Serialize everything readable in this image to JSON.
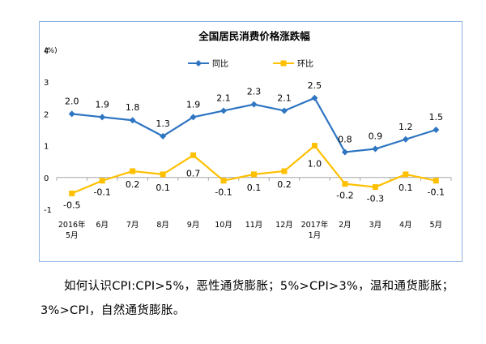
{
  "chart_data": {
    "type": "line",
    "title": "全国居民消费价格涨跌幅",
    "ylabel": "(%)",
    "ylim": [
      -1,
      4
    ],
    "yticks": [
      "-1",
      "0",
      "1",
      "2",
      "3",
      "4"
    ],
    "categories": [
      [
        "2016年",
        "5月"
      ],
      [
        "6月"
      ],
      [
        "7月"
      ],
      [
        "8月"
      ],
      [
        "9月"
      ],
      [
        "10月"
      ],
      [
        "11月"
      ],
      [
        "12月"
      ],
      [
        "2017年",
        "1月"
      ],
      [
        "2月"
      ],
      [
        "3月"
      ],
      [
        "4月"
      ],
      [
        "5月"
      ]
    ],
    "grid": false,
    "legend_position": "top",
    "series": [
      {
        "name": "同比",
        "color": "#2e75c2",
        "marker": "diamond",
        "values": [
          2.0,
          1.9,
          1.8,
          1.3,
          1.9,
          2.1,
          2.3,
          2.1,
          2.5,
          0.8,
          0.9,
          1.2,
          1.5
        ],
        "labels": [
          "2.0",
          "1.9",
          "1.8",
          "1.3",
          "1.9",
          "2.1",
          "2.3",
          "2.1",
          "2.5",
          "0.8",
          "0.9",
          "1.2",
          "1.5"
        ]
      },
      {
        "name": "环比",
        "color": "#ffc000",
        "marker": "square",
        "values": [
          -0.5,
          -0.1,
          0.2,
          0.1,
          0.7,
          -0.1,
          0.1,
          0.2,
          1.0,
          -0.2,
          -0.3,
          0.1,
          -0.1
        ],
        "labels": [
          "-0.5",
          "-0.1",
          "0.2",
          "0.1",
          "0.7",
          "-0.1",
          "0.1",
          "0.2",
          "1.0",
          "-0.2",
          "-0.3",
          "0.1",
          "-0.1"
        ]
      }
    ]
  },
  "caption": "如何认识CPI:CPI>5%，恶性通货膨胀；5%>CPI>3%，温和通货膨胀；3%>CPI，自然通货膨胀。"
}
